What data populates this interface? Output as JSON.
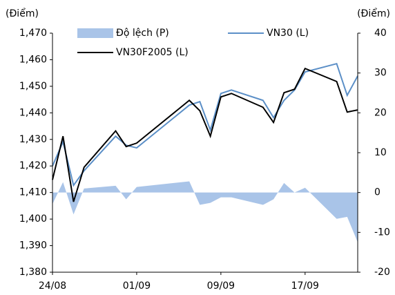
{
  "chart_data": {
    "type": "line",
    "ylabel": "(Điểm)",
    "y2label": "(Điểm)",
    "x": [
      "24/08",
      "25/08",
      "26/08",
      "27/08",
      "30/08",
      "31/08",
      "01/09",
      "06/09",
      "07/09",
      "08/09",
      "09/09",
      "10/09",
      "13/09",
      "14/09",
      "15/09",
      "16/09",
      "17/09",
      "20/09",
      "21/09",
      "22/09"
    ],
    "xlim": [
      "24/08",
      "22/09"
    ],
    "xticks": [
      "24/08",
      "01/09",
      "09/09",
      "17/09"
    ],
    "series": [
      {
        "name": "Độ lệch (P)",
        "type": "area",
        "axis": "y2",
        "color": "#a9c4e8",
        "values": [
          -2.9,
          2.6,
          -5.5,
          1.0,
          1.7,
          -1.7,
          1.4,
          2.8,
          -3.1,
          -2.6,
          -1.2,
          -1.2,
          -3.1,
          -1.7,
          2.4,
          0,
          1.2,
          -6.6,
          -6.1,
          -12.5
        ]
      },
      {
        "name": "VN30 (L)",
        "type": "line",
        "color": "#5b8fc7",
        "values": [
          1420,
          1429.1,
          1412.7,
          1418.2,
          1431.2,
          1427.8,
          1426.8,
          1442.9,
          1444.2,
          1433.5,
          1447.3,
          1448.6,
          1444.7,
          1438.2,
          1444.7,
          1448.6,
          1455.4,
          1458.5,
          1446.6,
          1453.9
        ]
      },
      {
        "name": "VN30F2005 (L)",
        "type": "line",
        "color": "#000000",
        "values": [
          1414.8,
          1431.2,
          1406.5,
          1419.5,
          1433.2,
          1427.3,
          1428.6,
          1444.7,
          1440.8,
          1431.2,
          1446,
          1447.3,
          1442.1,
          1436.4,
          1447.6,
          1448.9,
          1456.7,
          1451.8,
          1440.3,
          1441.1
        ]
      }
    ],
    "ylim": [
      1380,
      1470
    ],
    "yticks": [
      {
        "value": 1380,
        "label": "1,380"
      },
      {
        "value": 1390,
        "label": "1,390"
      },
      {
        "value": 1400,
        "label": "1,400"
      },
      {
        "value": 1410,
        "label": "1,410"
      },
      {
        "value": 1420,
        "label": "1,420"
      },
      {
        "value": 1430,
        "label": "1,430"
      },
      {
        "value": 1440,
        "label": "1,440"
      },
      {
        "value": 1450,
        "label": "1,450"
      },
      {
        "value": 1460,
        "label": "1,460"
      },
      {
        "value": 1470,
        "label": "1,470"
      }
    ],
    "y2lim": [
      -20,
      40
    ],
    "y2ticks": [
      -20,
      -10,
      0,
      10,
      20,
      30,
      40
    ],
    "grid": false
  }
}
